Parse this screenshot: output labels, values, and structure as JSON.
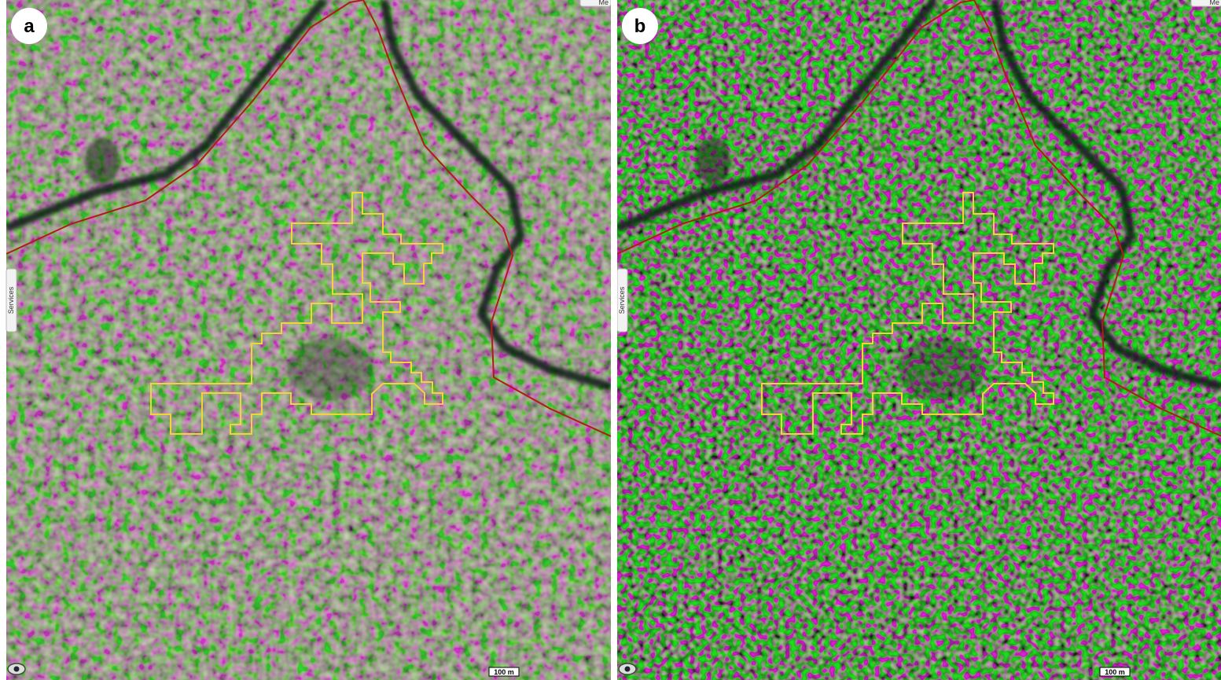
{
  "panels": [
    {
      "label": "a",
      "side_tab": "Services",
      "scale_label": "100 m",
      "menu_tab": "Me"
    },
    {
      "label": "b",
      "side_tab": "Services",
      "scale_label": "100 m",
      "menu_tab": "Me"
    }
  ]
}
